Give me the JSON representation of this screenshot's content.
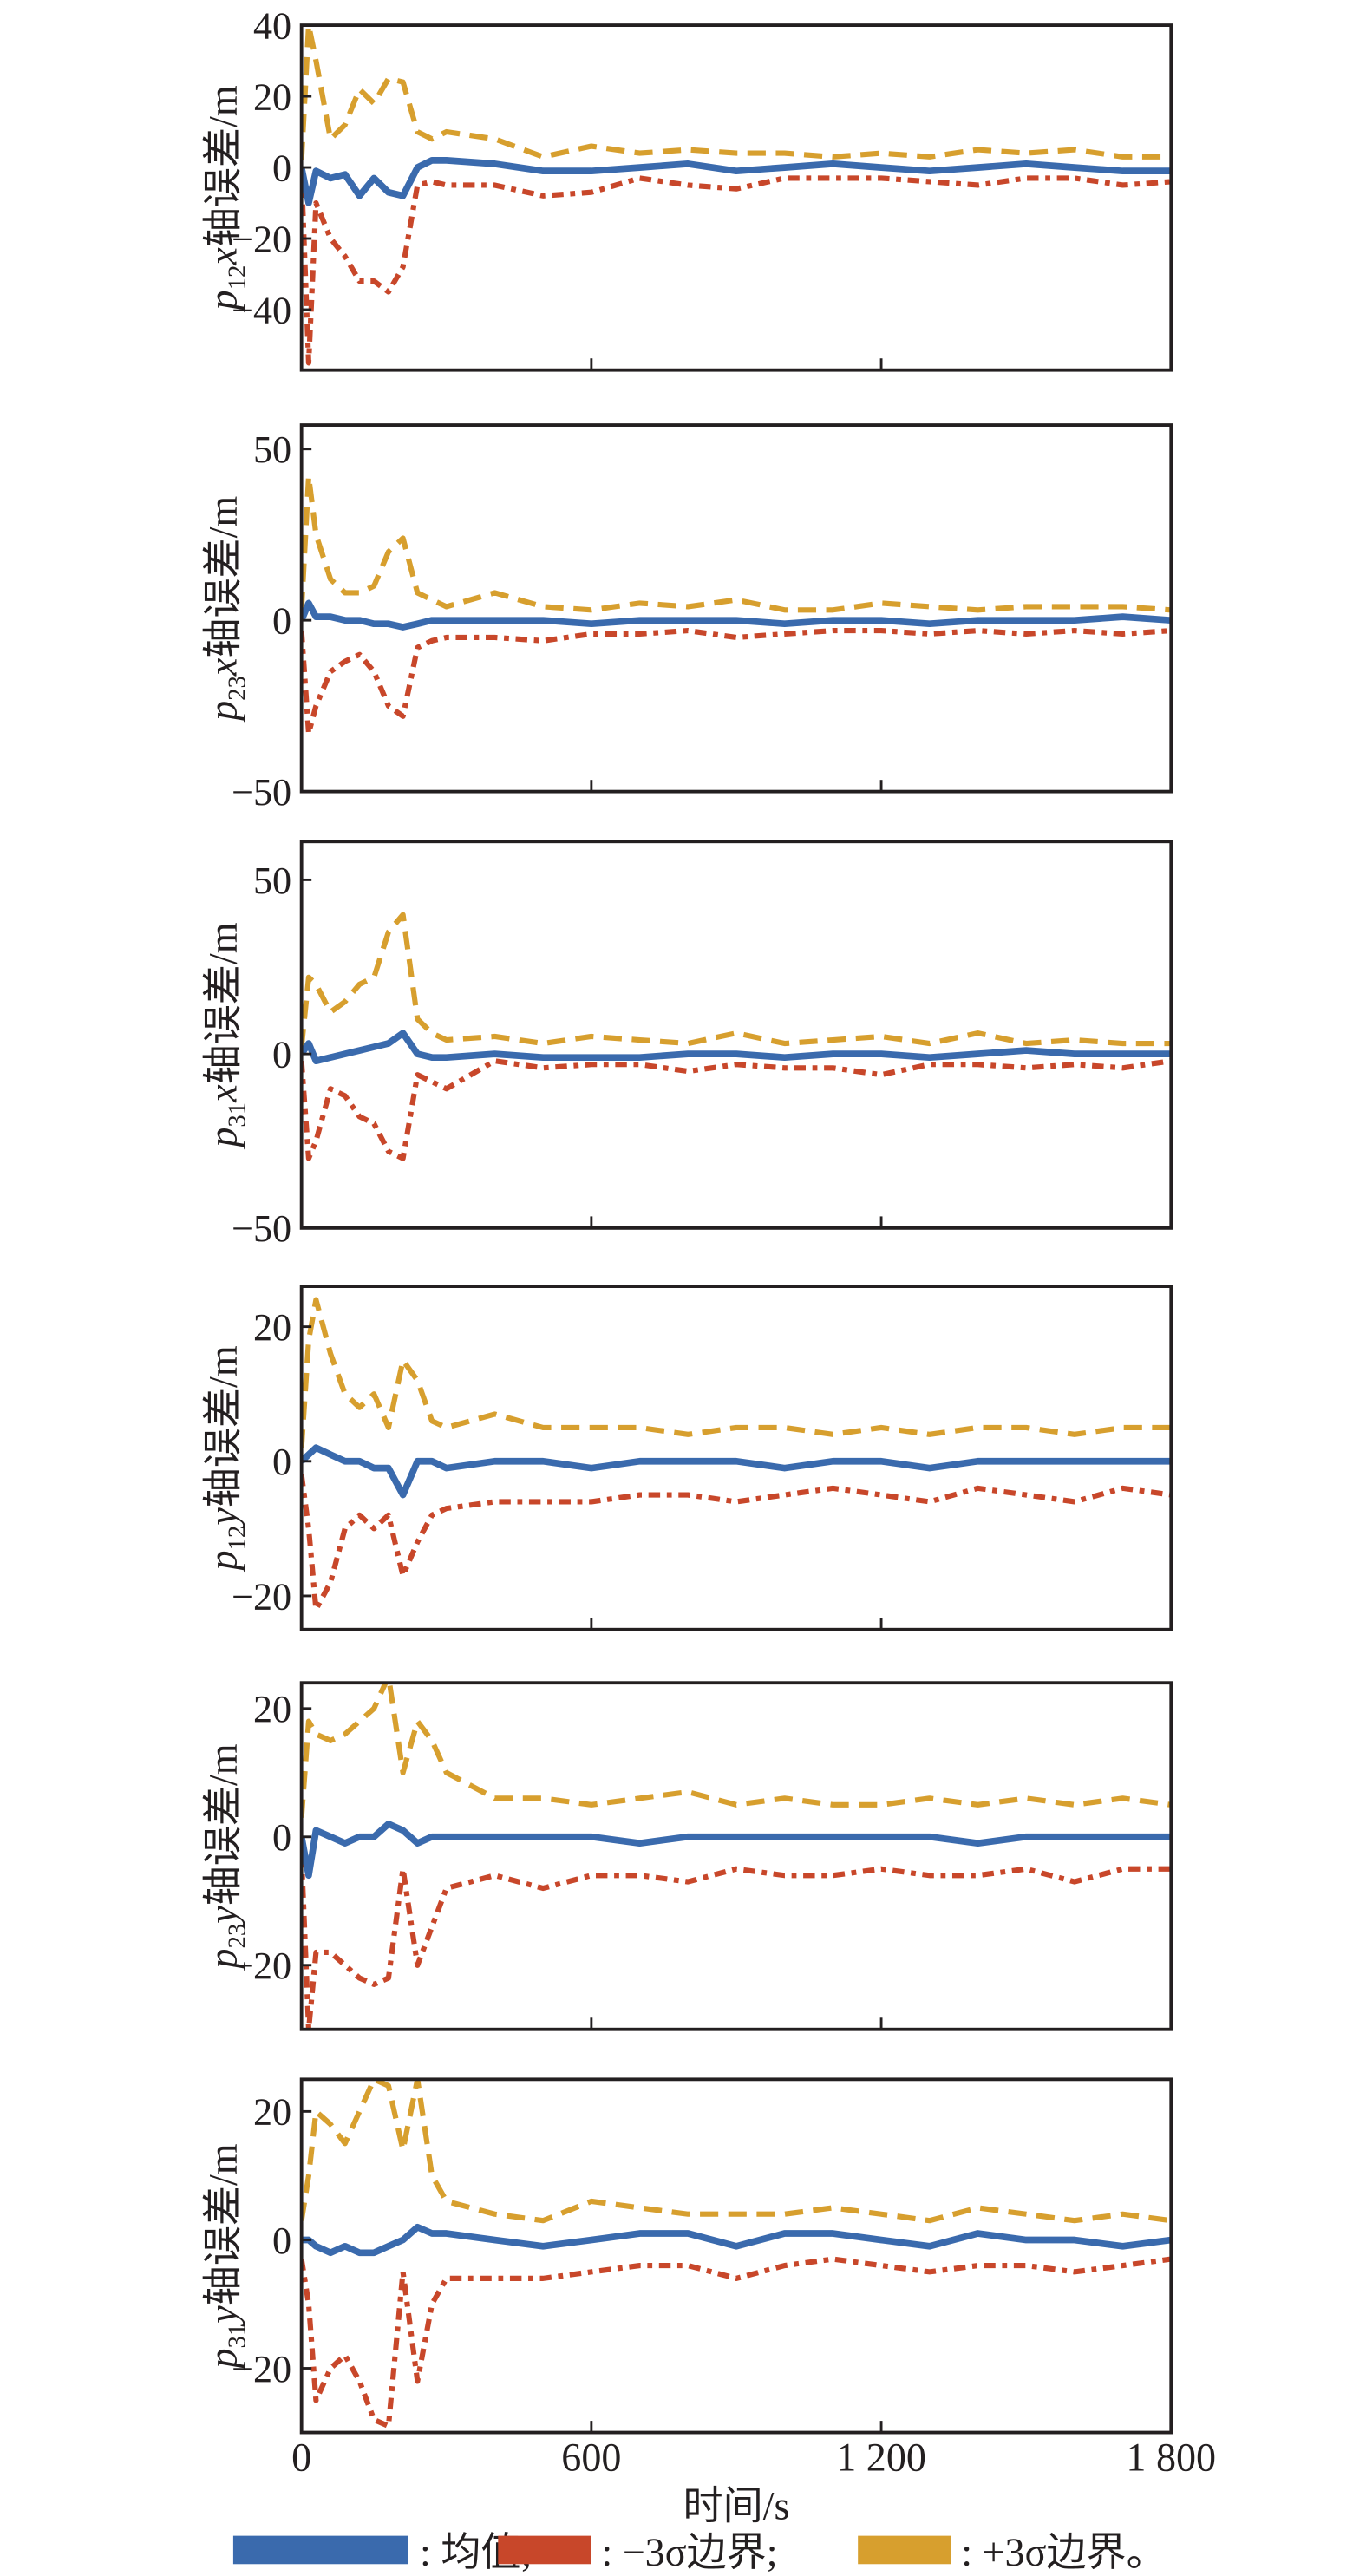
{
  "chart_data": {
    "type": "line",
    "xlabel": "时间/s",
    "x_ticks": [
      0,
      600,
      1200,
      1800
    ],
    "x_tick_labels": [
      "0",
      "600",
      "1 200",
      "1 800"
    ],
    "xlim": [
      0,
      1800
    ],
    "x": [
      0,
      15,
      30,
      60,
      90,
      120,
      150,
      180,
      210,
      240,
      270,
      300,
      400,
      500,
      600,
      700,
      800,
      900,
      1000,
      1100,
      1200,
      1300,
      1400,
      1500,
      1600,
      1700,
      1800
    ],
    "legend": {
      "placement": "bottom",
      "items": [
        {
          "key": "mean",
          "label": ": 均值;",
          "color": "#3a6aad"
        },
        {
          "key": "lower",
          "label": ": −3σ边界;",
          "color": "#c8472a"
        },
        {
          "key": "upper",
          "label": ": +3σ边界。",
          "color": "#d79f2e"
        }
      ]
    },
    "panels": [
      {
        "ylabel": {
          "var": "p",
          "sub": "12",
          "axis": "x",
          "rest": "轴误差/m"
        },
        "ylim": [
          -57,
          40
        ],
        "y_ticks": [
          40,
          20,
          0,
          -20,
          -40
        ],
        "y_tick_labels": [
          "40",
          "20",
          "0",
          "−20",
          "−40"
        ],
        "series": {
          "mean": [
            0,
            -10,
            -1,
            -3,
            -2,
            -8,
            -3,
            -7,
            -8,
            0,
            2,
            2,
            1,
            -1,
            -1,
            0,
            1,
            -1,
            0,
            1,
            0,
            -1,
            0,
            1,
            0,
            -1,
            -1
          ],
          "upper": [
            2,
            40,
            30,
            8,
            12,
            22,
            18,
            25,
            24,
            10,
            8,
            10,
            8,
            3,
            6,
            4,
            5,
            4,
            4,
            3,
            4,
            3,
            5,
            4,
            5,
            3,
            3
          ],
          "lower": [
            -2,
            -55,
            -10,
            -20,
            -25,
            -32,
            -32,
            -35,
            -28,
            -5,
            -4,
            -5,
            -5,
            -8,
            -7,
            -3,
            -5,
            -6,
            -3,
            -3,
            -3,
            -4,
            -5,
            -3,
            -3,
            -5,
            -4
          ]
        }
      },
      {
        "ylabel": {
          "var": "p",
          "sub": "23",
          "axis": "x",
          "rest": "轴误差/m"
        },
        "ylim": [
          -50,
          57
        ],
        "y_ticks": [
          50,
          0,
          -50
        ],
        "y_tick_labels": [
          "50",
          "0",
          "−50"
        ],
        "series": {
          "mean": [
            0,
            5,
            1,
            1,
            0,
            0,
            -1,
            -1,
            -2,
            -1,
            0,
            0,
            0,
            0,
            -1,
            0,
            0,
            0,
            -1,
            0,
            0,
            -1,
            0,
            0,
            0,
            1,
            0
          ],
          "upper": [
            3,
            42,
            25,
            12,
            8,
            8,
            10,
            20,
            24,
            8,
            6,
            4,
            8,
            4,
            3,
            5,
            4,
            6,
            3,
            3,
            5,
            4,
            3,
            4,
            4,
            4,
            3
          ],
          "lower": [
            -3,
            -33,
            -25,
            -15,
            -12,
            -10,
            -15,
            -25,
            -28,
            -8,
            -6,
            -5,
            -5,
            -6,
            -4,
            -4,
            -3,
            -5,
            -4,
            -3,
            -3,
            -4,
            -3,
            -4,
            -3,
            -4,
            -3
          ]
        }
      },
      {
        "ylabel": {
          "var": "p",
          "sub": "31",
          "axis": "x",
          "rest": "轴误差/m"
        },
        "ylim": [
          -50,
          61
        ],
        "y_ticks": [
          50,
          0,
          -50
        ],
        "y_tick_labels": [
          "50",
          "0",
          "−50"
        ],
        "series": {
          "mean": [
            0,
            3,
            -2,
            -1,
            0,
            1,
            2,
            3,
            6,
            0,
            -1,
            -1,
            0,
            -1,
            -1,
            -1,
            0,
            0,
            -1,
            0,
            0,
            -1,
            0,
            1,
            0,
            0,
            0
          ],
          "upper": [
            2,
            22,
            20,
            12,
            15,
            20,
            22,
            35,
            40,
            10,
            6,
            4,
            5,
            3,
            5,
            4,
            3,
            6,
            3,
            4,
            5,
            3,
            6,
            3,
            4,
            3,
            3
          ],
          "lower": [
            -2,
            -30,
            -25,
            -10,
            -12,
            -18,
            -20,
            -28,
            -30,
            -6,
            -8,
            -10,
            -2,
            -4,
            -3,
            -3,
            -5,
            -3,
            -4,
            -4,
            -6,
            -3,
            -3,
            -4,
            -3,
            -4,
            -2
          ]
        }
      },
      {
        "ylabel": {
          "var": "p",
          "sub": "12",
          "axis": "y",
          "rest": "轴误差/m"
        },
        "ylim": [
          -25,
          26
        ],
        "y_ticks": [
          20,
          0,
          -20
        ],
        "y_tick_labels": [
          "20",
          "0",
          "−20"
        ],
        "series": {
          "mean": [
            0,
            1,
            2,
            1,
            0,
            0,
            -1,
            -1,
            -5,
            0,
            0,
            -1,
            0,
            0,
            -1,
            0,
            0,
            0,
            -1,
            0,
            0,
            -1,
            0,
            0,
            0,
            0,
            0
          ],
          "upper": [
            2,
            18,
            24,
            16,
            10,
            8,
            10,
            5,
            15,
            12,
            6,
            5,
            7,
            5,
            5,
            5,
            4,
            5,
            5,
            4,
            5,
            4,
            5,
            5,
            4,
            5,
            5
          ],
          "lower": [
            -2,
            -10,
            -22,
            -18,
            -10,
            -8,
            -10,
            -8,
            -17,
            -12,
            -8,
            -7,
            -6,
            -6,
            -6,
            -5,
            -5,
            -6,
            -5,
            -4,
            -5,
            -6,
            -4,
            -5,
            -6,
            -4,
            -5
          ]
        }
      },
      {
        "ylabel": {
          "var": "p",
          "sub": "23",
          "axis": "y",
          "rest": "轴误差/m"
        },
        "ylim": [
          -30,
          24
        ],
        "y_ticks": [
          20,
          0,
          -20
        ],
        "y_tick_labels": [
          "20",
          "0",
          "−20"
        ],
        "series": {
          "mean": [
            0,
            -6,
            1,
            0,
            -1,
            0,
            0,
            2,
            1,
            -1,
            0,
            0,
            0,
            0,
            0,
            -1,
            0,
            0,
            0,
            0,
            0,
            0,
            -1,
            0,
            0,
            0,
            0
          ],
          "upper": [
            3,
            18,
            16,
            15,
            16,
            18,
            20,
            25,
            10,
            18,
            15,
            10,
            6,
            6,
            5,
            6,
            7,
            5,
            6,
            5,
            5,
            6,
            5,
            6,
            5,
            6,
            5
          ],
          "lower": [
            -3,
            -30,
            -18,
            -18,
            -20,
            -22,
            -23,
            -22,
            -5,
            -20,
            -14,
            -8,
            -6,
            -8,
            -6,
            -6,
            -7,
            -5,
            -6,
            -6,
            -5,
            -6,
            -6,
            -5,
            -7,
            -5,
            -5
          ]
        }
      },
      {
        "ylabel": {
          "var": "p",
          "sub": "31",
          "axis": "y",
          "rest": "轴误差/m"
        },
        "ylim": [
          -30,
          25
        ],
        "y_ticks": [
          20,
          0,
          -20
        ],
        "y_tick_labels": [
          "20",
          "0",
          "−20"
        ],
        "series": {
          "mean": [
            0,
            0,
            -1,
            -2,
            -1,
            -2,
            -2,
            -1,
            0,
            2,
            1,
            1,
            0,
            -1,
            0,
            1,
            1,
            -1,
            1,
            1,
            0,
            -1,
            1,
            0,
            0,
            -1,
            0
          ],
          "upper": [
            3,
            10,
            20,
            18,
            15,
            20,
            25,
            24,
            14,
            25,
            10,
            6,
            4,
            3,
            6,
            5,
            4,
            4,
            4,
            5,
            4,
            3,
            5,
            4,
            3,
            4,
            3
          ],
          "lower": [
            -3,
            -10,
            -25,
            -20,
            -18,
            -22,
            -28,
            -29,
            -5,
            -22,
            -10,
            -6,
            -6,
            -6,
            -5,
            -4,
            -4,
            -6,
            -4,
            -3,
            -4,
            -5,
            -4,
            -4,
            -5,
            -4,
            -3
          ]
        }
      }
    ]
  }
}
